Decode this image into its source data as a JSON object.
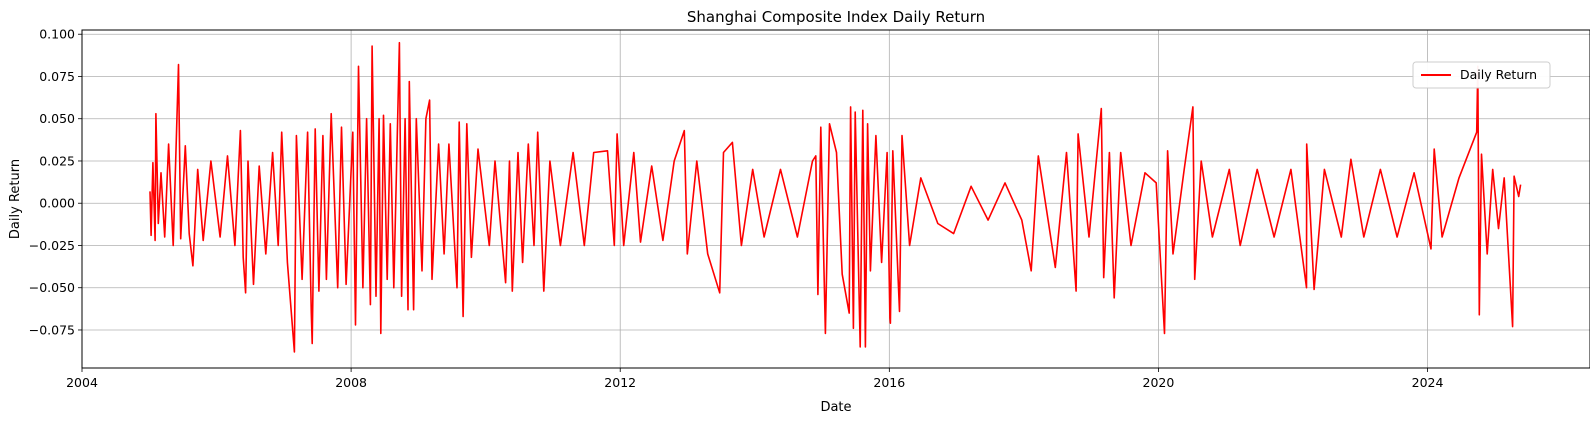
{
  "chart_data": {
    "type": "line",
    "title": "Shanghai Composite Index Daily Return",
    "xlabel": "Date",
    "ylabel": "Daily Return",
    "xlim": [
      "2004-01-01",
      "2026-06-01"
    ],
    "ylim": [
      -0.0975,
      0.1025
    ],
    "x_ticks": [
      {
        "value": "2004-01-01",
        "label": "2004"
      },
      {
        "value": "2008-01-01",
        "label": "2008"
      },
      {
        "value": "2012-01-01",
        "label": "2012"
      },
      {
        "value": "2016-01-01",
        "label": "2016"
      },
      {
        "value": "2020-01-01",
        "label": "2020"
      },
      {
        "value": "2024-01-01",
        "label": "2024"
      }
    ],
    "y_ticks": [
      {
        "value": 0.1,
        "label": "0.100"
      },
      {
        "value": 0.075,
        "label": "0.075"
      },
      {
        "value": 0.05,
        "label": "0.050"
      },
      {
        "value": 0.025,
        "label": "0.025"
      },
      {
        "value": 0.0,
        "label": "0.000"
      },
      {
        "value": -0.025,
        "label": "−0.025"
      },
      {
        "value": -0.05,
        "label": "−0.050"
      },
      {
        "value": -0.075,
        "label": "−0.075"
      }
    ],
    "grid": true,
    "legend_position": "top-right",
    "series": [
      {
        "name": "Daily Return",
        "color": "#ff0000",
        "points": [
          [
            "2005-01-04",
            0.007
          ],
          [
            "2005-01-10",
            -0.019
          ],
          [
            "2005-01-20",
            0.024
          ],
          [
            "2005-02-01",
            -0.022
          ],
          [
            "2005-02-05",
            0.053
          ],
          [
            "2005-02-18",
            -0.012
          ],
          [
            "2005-03-05",
            0.018
          ],
          [
            "2005-03-25",
            -0.02
          ],
          [
            "2005-04-15",
            0.035
          ],
          [
            "2005-05-10",
            -0.025
          ],
          [
            "2005-06-08",
            0.082
          ],
          [
            "2005-06-20",
            -0.021
          ],
          [
            "2005-07-15",
            0.034
          ],
          [
            "2005-08-05",
            -0.018
          ],
          [
            "2005-08-25",
            -0.037
          ],
          [
            "2005-09-20",
            0.02
          ],
          [
            "2005-10-20",
            -0.022
          ],
          [
            "2005-12-01",
            0.025
          ],
          [
            "2006-01-20",
            -0.02
          ],
          [
            "2006-03-01",
            0.028
          ],
          [
            "2006-04-10",
            -0.025
          ],
          [
            "2006-05-10",
            0.043
          ],
          [
            "2006-05-25",
            -0.032
          ],
          [
            "2006-06-07",
            -0.053
          ],
          [
            "2006-06-20",
            0.025
          ],
          [
            "2006-07-20",
            -0.048
          ],
          [
            "2006-08-20",
            0.022
          ],
          [
            "2006-09-25",
            -0.03
          ],
          [
            "2006-11-01",
            0.03
          ],
          [
            "2006-12-01",
            -0.025
          ],
          [
            "2006-12-20",
            0.042
          ],
          [
            "2007-01-20",
            -0.035
          ],
          [
            "2007-02-27",
            -0.088
          ],
          [
            "2007-03-10",
            0.04
          ],
          [
            "2007-04-10",
            -0.045
          ],
          [
            "2007-05-10",
            0.042
          ],
          [
            "2007-05-30",
            -0.065
          ],
          [
            "2007-06-04",
            -0.083
          ],
          [
            "2007-06-20",
            0.044
          ],
          [
            "2007-07-10",
            -0.052
          ],
          [
            "2007-08-01",
            0.04
          ],
          [
            "2007-08-20",
            -0.045
          ],
          [
            "2007-09-15",
            0.053
          ],
          [
            "2007-10-20",
            -0.05
          ],
          [
            "2007-11-10",
            0.045
          ],
          [
            "2007-12-05",
            -0.048
          ],
          [
            "2008-01-10",
            0.042
          ],
          [
            "2008-01-25",
            -0.072
          ],
          [
            "2008-02-10",
            0.081
          ],
          [
            "2008-03-05",
            -0.05
          ],
          [
            "2008-03-25",
            0.05
          ],
          [
            "2008-04-15",
            -0.06
          ],
          [
            "2008-04-24",
            0.093
          ],
          [
            "2008-05-15",
            -0.055
          ],
          [
            "2008-06-01",
            0.05
          ],
          [
            "2008-06-10",
            -0.077
          ],
          [
            "2008-06-25",
            0.052
          ],
          [
            "2008-07-15",
            -0.045
          ],
          [
            "2008-08-01",
            0.047
          ],
          [
            "2008-08-20",
            -0.05
          ],
          [
            "2008-09-19",
            0.095
          ],
          [
            "2008-10-01",
            -0.055
          ],
          [
            "2008-10-20",
            0.05
          ],
          [
            "2008-11-05",
            -0.063
          ],
          [
            "2008-11-12",
            0.072
          ],
          [
            "2008-12-05",
            -0.063
          ],
          [
            "2008-12-20",
            0.05
          ],
          [
            "2009-01-20",
            -0.04
          ],
          [
            "2009-02-10",
            0.05
          ],
          [
            "2009-03-02",
            0.061
          ],
          [
            "2009-03-15",
            -0.045
          ],
          [
            "2009-04-20",
            0.035
          ],
          [
            "2009-05-20",
            -0.03
          ],
          [
            "2009-06-15",
            0.035
          ],
          [
            "2009-07-29",
            -0.05
          ],
          [
            "2009-08-10",
            0.048
          ],
          [
            "2009-08-31",
            -0.067
          ],
          [
            "2009-09-20",
            0.047
          ],
          [
            "2009-10-15",
            -0.032
          ],
          [
            "2009-11-20",
            0.032
          ],
          [
            "2010-01-20",
            -0.025
          ],
          [
            "2010-02-20",
            0.025
          ],
          [
            "2010-04-19",
            -0.047
          ],
          [
            "2010-05-10",
            0.025
          ],
          [
            "2010-05-25",
            -0.052
          ],
          [
            "2010-06-25",
            0.03
          ],
          [
            "2010-07-20",
            -0.035
          ],
          [
            "2010-08-20",
            0.035
          ],
          [
            "2010-09-20",
            -0.025
          ],
          [
            "2010-10-10",
            0.042
          ],
          [
            "2010-11-12",
            -0.052
          ],
          [
            "2010-12-15",
            0.025
          ],
          [
            "2011-02-10",
            -0.025
          ],
          [
            "2011-04-20",
            0.03
          ],
          [
            "2011-06-20",
            -0.025
          ],
          [
            "2011-08-10",
            0.03
          ],
          [
            "2011-10-24",
            0.031
          ],
          [
            "2011-11-30",
            -0.025
          ],
          [
            "2011-12-15",
            0.041
          ],
          [
            "2012-01-20",
            -0.025
          ],
          [
            "2012-03-15",
            0.03
          ],
          [
            "2012-04-20",
            -0.023
          ],
          [
            "2012-06-20",
            0.022
          ],
          [
            "2012-08-20",
            -0.022
          ],
          [
            "2012-10-20",
            0.025
          ],
          [
            "2012-12-14",
            0.043
          ],
          [
            "2012-12-30",
            -0.03
          ],
          [
            "2013-02-20",
            0.025
          ],
          [
            "2013-04-20",
            -0.03
          ],
          [
            "2013-06-24",
            -0.053
          ],
          [
            "2013-07-15",
            0.03
          ],
          [
            "2013-09-01",
            0.036
          ],
          [
            "2013-10-20",
            -0.025
          ],
          [
            "2013-12-20",
            0.02
          ],
          [
            "2014-02-20",
            -0.02
          ],
          [
            "2014-05-20",
            0.02
          ],
          [
            "2014-08-20",
            -0.02
          ],
          [
            "2014-11-10",
            0.025
          ],
          [
            "2014-11-28",
            0.028
          ],
          [
            "2014-12-09",
            -0.054
          ],
          [
            "2014-12-25",
            0.045
          ],
          [
            "2015-01-19",
            -0.077
          ],
          [
            "2015-02-10",
            0.047
          ],
          [
            "2015-03-20",
            0.03
          ],
          [
            "2015-04-20",
            -0.042
          ],
          [
            "2015-05-28",
            -0.065
          ],
          [
            "2015-06-05",
            0.057
          ],
          [
            "2015-06-20",
            -0.074
          ],
          [
            "2015-06-30",
            0.054
          ],
          [
            "2015-07-27",
            -0.085
          ],
          [
            "2015-08-10",
            0.055
          ],
          [
            "2015-08-24",
            -0.085
          ],
          [
            "2015-09-05",
            0.047
          ],
          [
            "2015-09-20",
            -0.04
          ],
          [
            "2015-10-20",
            0.04
          ],
          [
            "2015-11-20",
            -0.035
          ],
          [
            "2015-12-20",
            0.03
          ],
          [
            "2016-01-04",
            -0.068
          ],
          [
            "2016-01-07",
            -0.071
          ],
          [
            "2016-01-20",
            0.031
          ],
          [
            "2016-02-25",
            -0.064
          ],
          [
            "2016-03-10",
            0.04
          ],
          [
            "2016-04-20",
            -0.025
          ],
          [
            "2016-06-20",
            0.015
          ],
          [
            "2016-09-20",
            -0.012
          ],
          [
            "2016-12-15",
            -0.018
          ],
          [
            "2017-03-20",
            0.01
          ],
          [
            "2017-06-20",
            -0.01
          ],
          [
            "2017-09-20",
            0.012
          ],
          [
            "2017-12-20",
            -0.01
          ],
          [
            "2018-02-09",
            -0.04
          ],
          [
            "2018-03-20",
            0.028
          ],
          [
            "2018-06-20",
            -0.038
          ],
          [
            "2018-08-20",
            0.03
          ],
          [
            "2018-10-11",
            -0.052
          ],
          [
            "2018-10-22",
            0.041
          ],
          [
            "2018-12-20",
            -0.02
          ],
          [
            "2019-02-25",
            0.056
          ],
          [
            "2019-03-10",
            -0.044
          ],
          [
            "2019-04-10",
            0.03
          ],
          [
            "2019-05-06",
            -0.056
          ],
          [
            "2019-06-10",
            0.03
          ],
          [
            "2019-08-05",
            -0.025
          ],
          [
            "2019-10-20",
            0.018
          ],
          [
            "2019-12-20",
            0.012
          ],
          [
            "2020-02-03",
            -0.077
          ],
          [
            "2020-02-20",
            0.031
          ],
          [
            "2020-03-20",
            -0.03
          ],
          [
            "2020-05-20",
            0.02
          ],
          [
            "2020-07-06",
            0.057
          ],
          [
            "2020-07-16",
            -0.045
          ],
          [
            "2020-08-20",
            0.025
          ],
          [
            "2020-10-20",
            -0.02
          ],
          [
            "2021-01-20",
            0.02
          ],
          [
            "2021-03-20",
            -0.025
          ],
          [
            "2021-06-20",
            0.02
          ],
          [
            "2021-09-20",
            -0.02
          ],
          [
            "2021-12-20",
            0.02
          ],
          [
            "2022-03-15",
            -0.05
          ],
          [
            "2022-03-16",
            0.035
          ],
          [
            "2022-04-25",
            -0.051
          ],
          [
            "2022-06-20",
            0.02
          ],
          [
            "2022-09-20",
            -0.02
          ],
          [
            "2022-11-11",
            0.026
          ],
          [
            "2023-01-20",
            -0.02
          ],
          [
            "2023-04-20",
            0.02
          ],
          [
            "2023-07-20",
            -0.02
          ],
          [
            "2023-10-20",
            0.018
          ],
          [
            "2024-01-20",
            -0.027
          ],
          [
            "2024-02-06",
            0.032
          ],
          [
            "2024-03-20",
            -0.02
          ],
          [
            "2024-06-20",
            0.015
          ],
          [
            "2024-09-24",
            0.042
          ],
          [
            "2024-09-30",
            0.081
          ],
          [
            "2024-10-08",
            -0.066
          ],
          [
            "2024-10-20",
            0.029
          ],
          [
            "2024-11-20",
            -0.03
          ],
          [
            "2024-12-20",
            0.02
          ],
          [
            "2025-01-20",
            -0.015
          ],
          [
            "2025-02-20",
            0.015
          ],
          [
            "2025-04-07",
            -0.073
          ],
          [
            "2025-04-15",
            0.016
          ],
          [
            "2025-05-10",
            0.004
          ],
          [
            "2025-05-20",
            0.011
          ]
        ]
      }
    ]
  }
}
